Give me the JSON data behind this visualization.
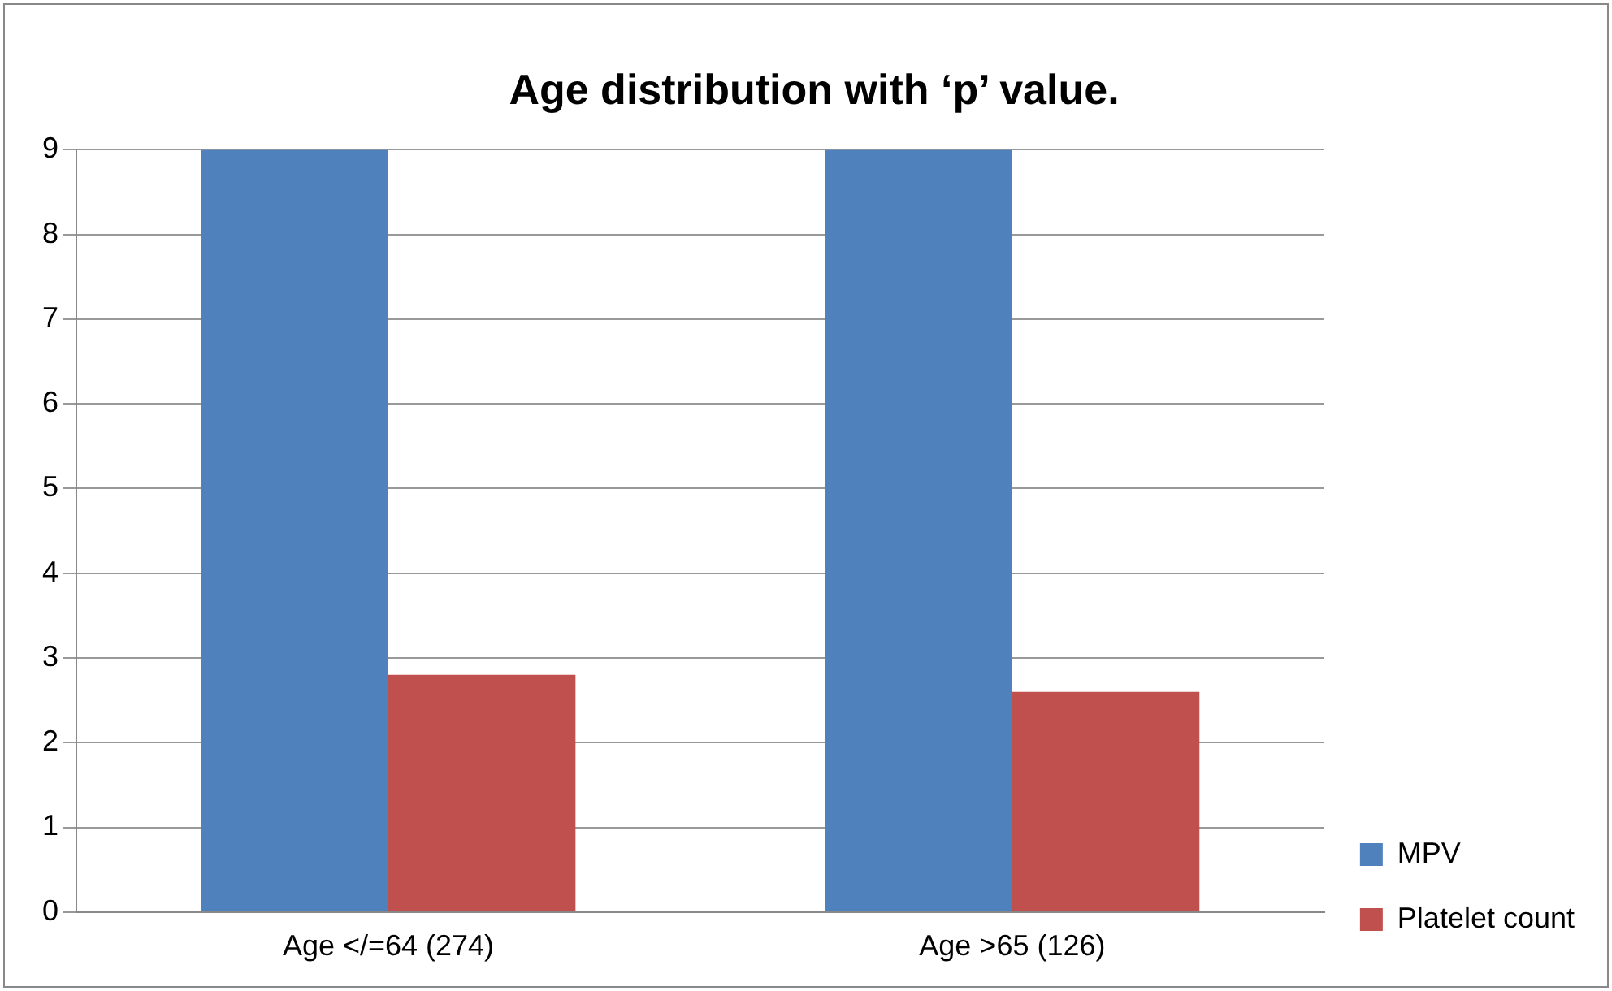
{
  "chart_data": {
    "type": "bar",
    "title": "Age distribution with ‘p’ value.",
    "categories": [
      "Age </=64 (274)",
      "Age >65 (126)"
    ],
    "series": [
      {
        "name": "MPV",
        "color": "#4f81bd",
        "values": [
          9,
          9
        ]
      },
      {
        "name": "Platelet count",
        "color": "#c0504d",
        "values": [
          2.8,
          2.6
        ]
      }
    ],
    "ylim": [
      0,
      9
    ],
    "yticks": [
      0,
      1,
      2,
      3,
      4,
      5,
      6,
      7,
      8,
      9
    ],
    "grid": "y",
    "legend": "bottom right"
  }
}
